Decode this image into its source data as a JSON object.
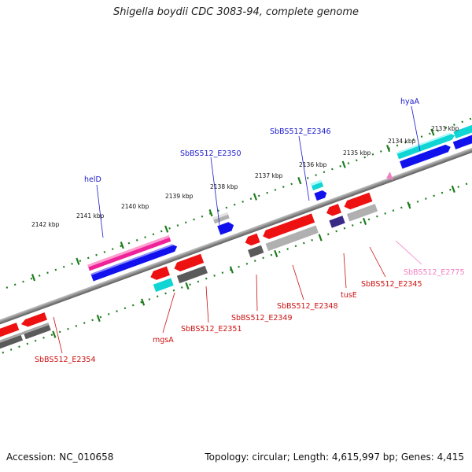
{
  "title": "Shigella boydii CDC 3083-94, complete genome",
  "footer": {
    "accession": "Accession: NC_010658",
    "stats": "Topology: circular; Length: 4,615,997 bp; Genes: 4,415"
  },
  "colors": {
    "backbone": "#808080",
    "tick": "#1e7d1e",
    "label_forward": "#1a1acc",
    "label_reverse": "#cc1111",
    "label_pink": "#f080c0",
    "red": "#ee1111",
    "blue": "#1111ee",
    "cyan": "#11d4d4",
    "magenta": "#ee2299",
    "gray": "#b0b0b0",
    "darkgray": "#5a5a5a",
    "navy": "#3a2a88"
  },
  "kbp_labels": [
    "2142 kbp",
    "2141 kbp",
    "2140 kbp",
    "2139 kbp",
    "2138 kbp",
    "2137 kbp",
    "2136 kbp",
    "2135 kbp",
    "2134 kbp",
    "2133 kbp"
  ],
  "gene_labels": {
    "forward": [
      "helD",
      "SbBS512_E2350",
      "SbBS512_E2346",
      "hyaA"
    ],
    "reverse": [
      "SbBS512_E2354",
      "mgsA",
      "SbBS512_E2351",
      "SbBS512_E2349",
      "SbBS512_E2348",
      "tusE",
      "SbBS512_E2345"
    ],
    "pink": [
      "SbBS512_E2775"
    ]
  }
}
